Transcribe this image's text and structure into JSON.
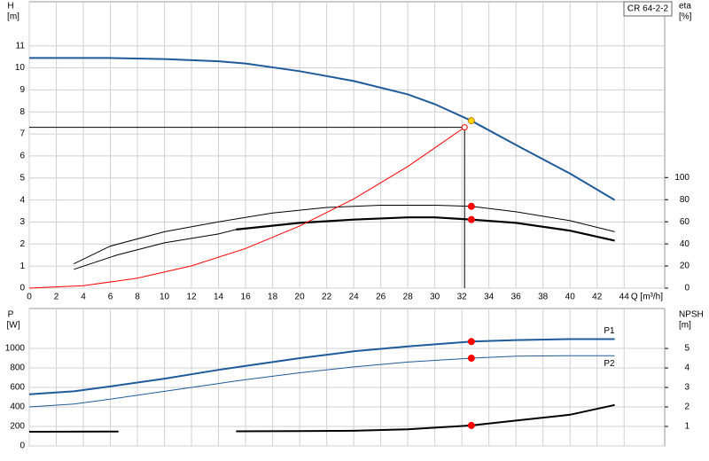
{
  "chart_data": [
    {
      "type": "line",
      "title": "CR 64-2-2",
      "ylabel": "H",
      "yunit": "[m]",
      "y2label": "eta",
      "y2unit": "[%]",
      "xlabel": "Q [m³/h]",
      "xlim": [
        0,
        47
      ],
      "xticks": [
        0,
        2,
        4,
        6,
        8,
        10,
        12,
        14,
        16,
        18,
        20,
        22,
        24,
        26,
        28,
        30,
        32,
        34,
        36,
        38,
        40,
        42,
        44
      ],
      "ylim": [
        0,
        13
      ],
      "yticks": [
        0,
        1,
        2,
        3,
        4,
        5,
        6,
        7,
        8,
        9,
        10,
        11
      ],
      "y2lim": [
        0,
        259
      ],
      "y2ticks": [
        0,
        20,
        40,
        60,
        80,
        100
      ],
      "grid": true,
      "show_xtick_labels": true,
      "series": [
        {
          "color": "#1f5a9a",
          "width": 2,
          "axis": "y",
          "x": [
            0,
            6,
            10,
            14,
            16,
            20,
            24,
            28,
            30,
            32.7,
            36,
            40,
            43.3
          ],
          "values": [
            10.45,
            10.45,
            10.4,
            10.3,
            10.2,
            9.85,
            9.4,
            8.8,
            8.35,
            7.6,
            6.5,
            5.2,
            4.0
          ]
        },
        {
          "color": "#000000",
          "width": 1,
          "axis": "y2",
          "x": [
            3.3,
            6,
            10,
            14,
            18,
            22,
            26,
            30,
            32.7,
            36,
            40,
            43.3
          ],
          "values": [
            22,
            38,
            51,
            60,
            68,
            73,
            75,
            75,
            74,
            69,
            61,
            51
          ]
        },
        {
          "color": "#000000",
          "width": 1,
          "axis": "y2",
          "x": [
            3.3,
            6.5,
            10,
            14,
            15.3
          ],
          "values": [
            17,
            30,
            41,
            49,
            53
          ]
        },
        {
          "color": "#000000",
          "width": 2.2,
          "axis": "y2",
          "x": [
            15.3,
            20,
            24,
            28,
            30,
            32.7,
            36,
            40,
            43.3
          ],
          "values": [
            53,
            59,
            62,
            64,
            64,
            62,
            59,
            52,
            43
          ]
        },
        {
          "color": "#ff0000",
          "width": 1,
          "axis": "y",
          "x": [
            0,
            4,
            8,
            12,
            16,
            20,
            24,
            28,
            32.2
          ],
          "values": [
            0,
            0.11,
            0.45,
            1.01,
            1.8,
            2.82,
            4.05,
            5.52,
            7.3
          ]
        }
      ],
      "duty_point": {
        "x": 32.2,
        "y": 7.3
      },
      "points": [
        {
          "x": 32.7,
          "y": 7.6,
          "axis": "y",
          "color": "#ffd700"
        },
        {
          "x": 32.7,
          "y": 74,
          "axis": "y2",
          "color": "#ff0000"
        },
        {
          "x": 32.7,
          "y": 62,
          "axis": "y2",
          "color": "#ff0000"
        }
      ]
    },
    {
      "type": "line",
      "ylabel": "P",
      "yunit": "[W]",
      "y2label": "NPSH",
      "y2unit": "[m]",
      "xlim": [
        0,
        47
      ],
      "xticks": [
        0,
        2,
        4,
        6,
        8,
        10,
        12,
        14,
        16,
        18,
        20,
        22,
        24,
        26,
        28,
        30,
        32,
        34,
        36,
        38,
        40,
        42,
        44
      ],
      "ylim": [
        0,
        1409
      ],
      "yticks": [
        0,
        200,
        400,
        600,
        800,
        1000
      ],
      "y2lim": [
        0,
        7.05
      ],
      "y2ticks": [
        1,
        2,
        3,
        4,
        5
      ],
      "grid": true,
      "show_xtick_labels": false,
      "series": [
        {
          "name": "P1",
          "color": "#1f5a9a",
          "width": 2,
          "axis": "y",
          "x": [
            0,
            3.3,
            6,
            10,
            14,
            16,
            20,
            24,
            28,
            32.7,
            36,
            40,
            43.3
          ],
          "values": [
            530,
            560,
            610,
            690,
            780,
            820,
            900,
            970,
            1020,
            1070,
            1085,
            1095,
            1095
          ]
        },
        {
          "name": "P2",
          "color": "#1f5a9a",
          "width": 1,
          "axis": "y",
          "x": [
            0,
            3.3,
            6,
            10,
            14,
            16,
            20,
            24,
            28,
            32.7,
            36,
            40,
            43.3
          ],
          "values": [
            400,
            430,
            480,
            560,
            640,
            680,
            750,
            810,
            860,
            900,
            920,
            925,
            925
          ]
        },
        {
          "color": "#000000",
          "width": 2,
          "axis": "y2",
          "x": [
            0,
            6.6,
            10,
            15.3,
            20,
            24,
            28,
            32.7,
            36,
            40,
            43.3
          ],
          "values": [
            0.73,
            0.74,
            null,
            0.75,
            0.76,
            0.78,
            0.85,
            1.05,
            1.3,
            1.6,
            2.1
          ]
        }
      ],
      "points": [
        {
          "x": 32.7,
          "y": 1070,
          "axis": "y",
          "color": "#ff0000"
        },
        {
          "x": 32.7,
          "y": 900,
          "axis": "y",
          "color": "#ff0000"
        },
        {
          "x": 32.7,
          "y": 1.05,
          "axis": "y2",
          "color": "#ff0000"
        }
      ]
    }
  ]
}
